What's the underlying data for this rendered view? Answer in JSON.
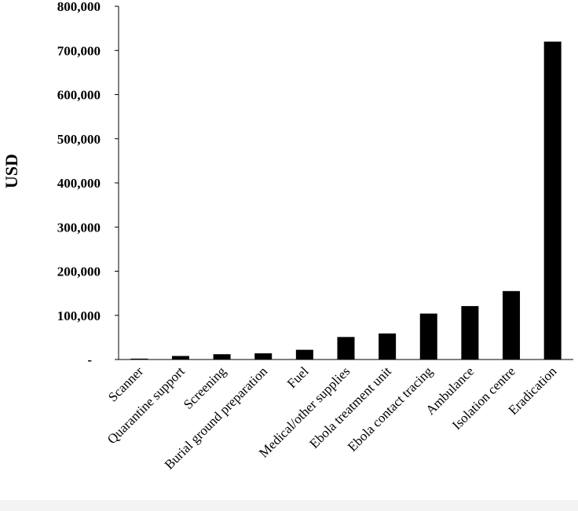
{
  "chart_data": {
    "type": "bar",
    "title": "",
    "xlabel": "",
    "ylabel": "USD",
    "ylim": [
      0,
      800000
    ],
    "yticks": [
      0,
      100000,
      200000,
      300000,
      400000,
      500000,
      600000,
      700000,
      800000
    ],
    "ytick_labels": [
      "-",
      "100,000",
      "200,000",
      "300,000",
      "400,000",
      "500,000",
      "600,000",
      "700,000",
      "800,000"
    ],
    "categories": [
      "Scanner",
      "Quarantine support",
      "Screening",
      "Burial ground preparation",
      "Fuel",
      "Medical/other supplies",
      "Ebola treatment unit",
      "Ebola contact tracing",
      "Ambulance",
      "Isolation centre",
      "Eradication"
    ],
    "values": [
      2000,
      8000,
      12000,
      14000,
      22000,
      51000,
      59000,
      104000,
      121000,
      155000,
      720000
    ],
    "grid": false,
    "legend": "none",
    "bar_color": "#000000"
  }
}
